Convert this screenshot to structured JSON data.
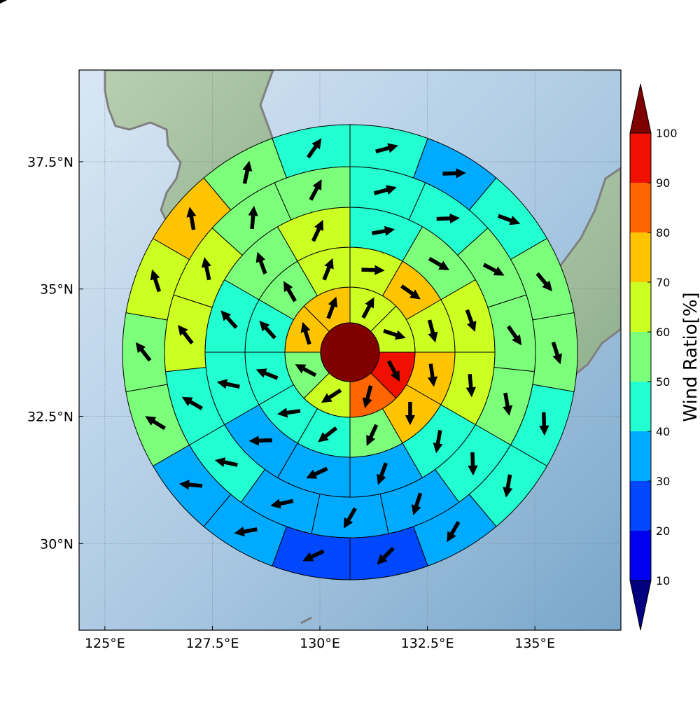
{
  "map": {
    "x_ticks": [
      125,
      127.5,
      130,
      132.5,
      135
    ],
    "x_tick_labels": [
      "125°E",
      "127.5°E",
      "130°E",
      "132.5°E",
      "135°E"
    ],
    "y_ticks": [
      37.5,
      35,
      32.5,
      30
    ],
    "y_tick_labels": [
      "37.5°N",
      "35°N",
      "32.5°N",
      "30°N"
    ],
    "xlim": [
      124.4,
      137.0
    ],
    "ylim": [
      28.3,
      39.3
    ],
    "gridlines": true,
    "colors": {
      "ocean_light": "#cfe0f0",
      "ocean_dark": "#7ea9cc",
      "land": "#9fbf9f",
      "coast": "#808080"
    }
  },
  "colorbar": {
    "label": "Wind Ratio[%]",
    "tick_values": [
      10,
      20,
      30,
      40,
      50,
      60,
      70,
      80,
      90,
      100
    ],
    "tick_labels": [
      "10",
      "20",
      "30",
      "40",
      "50",
      "60",
      "70",
      "80",
      "90",
      "100"
    ],
    "levels": [
      0,
      10,
      20,
      30,
      40,
      50,
      60,
      70,
      80,
      90,
      100,
      110
    ],
    "colors": [
      "#000080",
      "#0000f0",
      "#0048ff",
      "#00aaff",
      "#22ffd0",
      "#7cff7a",
      "#ccff22",
      "#ffc400",
      "#ff6600",
      "#f01000",
      "#800000"
    ],
    "extend": "both"
  },
  "chart_data": {
    "type": "polar-sector-wind-map",
    "center_value": 100,
    "rings": [
      {
        "values": [
          65,
          68,
          92,
          82,
          63,
          55,
          72,
          78
        ],
        "directions": [
          28,
          108,
          152,
          195,
          237,
          298,
          343,
          20
        ]
      },
      {
        "values": [
          63,
          72,
          68,
          72,
          72,
          58,
          48,
          45,
          45,
          48,
          56,
          62
        ],
        "directions": [
          92,
          125,
          165,
          172,
          180,
          205,
          232,
          262,
          292,
          318,
          330,
          22
        ]
      },
      {
        "values": [
          42,
          58,
          62,
          62,
          48,
          38,
          32,
          38,
          48,
          45,
          58,
          62
        ],
        "directions": [
          80,
          120,
          160,
          175,
          190,
          200,
          245,
          268,
          282,
          318,
          340,
          25
        ]
      },
      {
        "values": [
          48,
          45,
          50,
          55,
          50,
          40,
          38,
          35,
          33,
          42,
          48,
          60,
          63,
          58,
          55
        ],
        "directions": [
          75,
          88,
          118,
          145,
          170,
          178,
          198,
          210,
          258,
          282,
          300,
          322,
          348,
          5,
          28
        ]
      },
      {
        "values": [
          48,
          38,
          40,
          52,
          52,
          45,
          40,
          35,
          28,
          25,
          35,
          38,
          50,
          57,
          63,
          72,
          58,
          48
        ],
        "directions": [
          75,
          88,
          110,
          140,
          162,
          178,
          190,
          210,
          225,
          245,
          260,
          275,
          302,
          322,
          342,
          350,
          12,
          35
        ]
      },
      {
        "values": [
          38,
          38,
          35,
          42,
          55,
          55,
          52,
          42,
          35,
          28,
          22,
          25,
          22,
          25,
          35,
          38,
          45,
          60,
          70,
          58
        ],
        "directions": [
          72,
          82,
          108,
          142,
          158,
          172,
          178,
          185,
          195,
          208,
          218,
          228,
          232,
          250,
          262,
          282,
          295,
          318,
          338,
          58
        ]
      }
    ]
  }
}
